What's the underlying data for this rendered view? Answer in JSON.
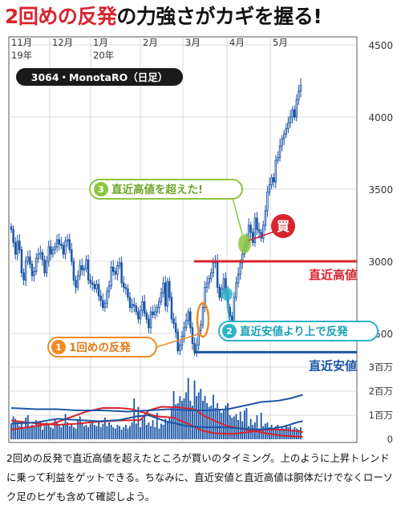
{
  "headline": {
    "part1": "2回めの反発",
    "part2": "の力強さがカギを握る!"
  },
  "ticker_label": "3064・MonotaRO（日足）",
  "caption": "2回めの反発で直近高値を超えたところが買いのタイミング。上のように上昇トレンドに乗って利益をゲットできる。ちなみに、直近安値と直近高値は胴体だけでなくローソク足のヒゲも含めて確認しよう。",
  "colors": {
    "headline_red": "#d8242e",
    "candle": "#1d56a6",
    "volume": "#1d56a6",
    "high_line": "#d8242e",
    "low_line": "#1d56a6",
    "orange": "#f08a24",
    "green": "#8cc63f",
    "cyan": "#2fb3c9"
  },
  "chart_data": {
    "type": "candlestick",
    "x_tick_labels": [
      {
        "month": "11月",
        "year": "19年"
      },
      {
        "month": "12月",
        "year": ""
      },
      {
        "month": "1月",
        "year": "20年"
      },
      {
        "month": "2月",
        "year": ""
      },
      {
        "month": "3月",
        "year": ""
      },
      {
        "month": "4月",
        "year": ""
      },
      {
        "month": "5月",
        "year": ""
      }
    ],
    "price_axis": {
      "min": 2200,
      "max": 4500,
      "ticks": [
        "4500",
        "4000",
        "3500",
        "3000",
        "2500"
      ]
    },
    "volume_axis": {
      "max": 3,
      "ticks": [
        "3百万",
        "2百万",
        "1百万",
        "0"
      ]
    },
    "closes": [
      3220,
      3130,
      3050,
      3140,
      3080,
      2920,
      2870,
      3000,
      3030,
      2980,
      2900,
      2930,
      3020,
      3050,
      3060,
      3010,
      2920,
      3000,
      3100,
      3050,
      3080,
      3100,
      3150,
      3120,
      3110,
      3050,
      3140,
      3150,
      3080,
      3000,
      2870,
      2820,
      2900,
      2970,
      2940,
      2950,
      3010,
      2870,
      2850,
      2840,
      2810,
      2840,
      2760,
      2730,
      2680,
      2710,
      2790,
      2830,
      2960,
      2930,
      2910,
      2970,
      2990,
      2850,
      2820,
      2810,
      2750,
      2680,
      2700,
      2690,
      2650,
      2600,
      2660,
      2720,
      2640,
      2600,
      2540,
      2650,
      2630,
      2650,
      2680,
      2720,
      2780,
      2850,
      2690,
      2860,
      2750,
      2600,
      2570,
      2510,
      2380,
      2420,
      2480,
      2540,
      2590,
      2650,
      2540,
      2430,
      2370,
      2420,
      2520,
      2560,
      2680,
      2820,
      2850,
      2880,
      2920,
      2990,
      3000,
      2820,
      2750,
      2810,
      2880,
      2780,
      2680,
      2620,
      2570,
      2750,
      2850,
      2910,
      2990,
      3050,
      3100,
      3150,
      3250,
      3200,
      3130,
      3300,
      3220,
      3200,
      3160,
      3250,
      3350,
      3480,
      3530,
      3580,
      3550,
      3700,
      3720,
      3800,
      3850,
      3880,
      3920,
      3960,
      4000,
      4050,
      4000,
      4120,
      4180,
      4220
    ],
    "volumes": [
      0.65,
      0.95,
      0.85,
      0.75,
      0.55,
      0.7,
      0.45,
      0.9,
      1.0,
      0.55,
      0.6,
      0.5,
      0.8,
      0.65,
      0.75,
      0.4,
      0.55,
      0.7,
      0.6,
      0.5,
      0.45,
      0.85,
      0.75,
      0.6,
      0.5,
      0.65,
      1.05,
      0.7,
      0.55,
      0.6,
      0.5,
      0.45,
      0.8,
      0.95,
      0.7,
      0.55,
      0.6,
      0.5,
      0.65,
      0.7,
      0.6,
      0.55,
      0.75,
      0.5,
      0.65,
      0.9,
      0.55,
      0.7,
      0.6,
      0.5,
      0.45,
      0.6,
      0.55,
      0.4,
      0.5,
      0.6,
      0.45,
      0.55,
      0.7,
      1.7,
      0.65,
      1.35,
      0.5,
      0.85,
      1.0,
      0.6,
      0.7,
      0.55,
      0.8,
      0.5,
      1.1,
      0.45,
      0.65,
      0.6,
      0.85,
      0.75,
      0.9,
      1.3,
      2.0,
      1.45,
      1.5,
      1.8,
      1.6,
      1.7,
      1.95,
      2.55,
      1.6,
      1.4,
      2.45,
      1.8,
      1.95,
      2.1,
      1.6,
      1.8,
      1.5,
      1.35,
      1.4,
      1.85,
      1.3,
      1.5,
      1.25,
      1.1,
      1.2,
      1.4,
      1.5,
      1.0,
      0.9,
      0.95,
      1.05,
      0.8,
      1.15,
      0.75,
      1.2,
      1.3,
      0.55,
      0.85,
      0.6,
      0.7,
      1.0,
      0.45,
      1.1,
      0.55,
      0.65,
      0.7,
      0.5,
      0.6,
      0.45,
      0.55,
      0.6,
      0.4,
      0.5,
      0.45,
      0.6,
      0.5,
      0.55,
      0.4,
      0.5,
      0.45,
      0.4,
      0.5
    ],
    "volume_ma": [
      {
        "color": "#d8242e",
        "values": [
          [
            0,
            0.78
          ],
          [
            12,
            0.66
          ],
          [
            22,
            0.6
          ],
          [
            32,
            0.65
          ],
          [
            40,
            0.72
          ],
          [
            52,
            0.78
          ],
          [
            62,
            0.8
          ],
          [
            66,
            1.2
          ],
          [
            72,
            1.35
          ],
          [
            80,
            1.33
          ],
          [
            88,
            1.25
          ],
          [
            92,
            1.0
          ],
          [
            98,
            0.75
          ],
          [
            104,
            0.55
          ],
          [
            110,
            0.45
          ],
          [
            116,
            0.35
          ],
          [
            122,
            0.25
          ],
          [
            130,
            0.15
          ],
          [
            136,
            0.12
          ],
          [
            140,
            0.1
          ]
        ]
      },
      {
        "color": "#d8242e",
        "values": [
          [
            0,
            0.4
          ],
          [
            12,
            0.55
          ],
          [
            20,
            0.65
          ],
          [
            28,
            0.9
          ],
          [
            36,
            1.15
          ],
          [
            44,
            1.3
          ],
          [
            52,
            1.3
          ],
          [
            58,
            1.25
          ],
          [
            64,
            1.1
          ],
          [
            70,
            0.95
          ],
          [
            78,
            0.9
          ],
          [
            86,
            0.6
          ],
          [
            92,
            0.35
          ],
          [
            98,
            0.25
          ],
          [
            106,
            0.22
          ],
          [
            114,
            0.3
          ],
          [
            122,
            0.4
          ],
          [
            130,
            0.4
          ],
          [
            136,
            0.35
          ],
          [
            140,
            0.3
          ]
        ]
      },
      {
        "color": "#1d56a6",
        "values": [
          [
            0,
            0.65
          ],
          [
            12,
            0.7
          ],
          [
            22,
            0.85
          ],
          [
            32,
            0.8
          ],
          [
            42,
            0.75
          ],
          [
            52,
            0.8
          ],
          [
            60,
            0.95
          ],
          [
            66,
            1.0
          ],
          [
            74,
            0.75
          ],
          [
            84,
            0.55
          ],
          [
            92,
            0.5
          ],
          [
            102,
            0.5
          ],
          [
            110,
            0.45
          ],
          [
            118,
            0.4
          ],
          [
            126,
            0.45
          ],
          [
            132,
            0.55
          ],
          [
            137,
            0.7
          ],
          [
            140,
            0.75
          ]
        ]
      },
      {
        "color": "#1d56a6",
        "values": [
          [
            0,
            1.3
          ],
          [
            12,
            1.25
          ],
          [
            22,
            1.25
          ],
          [
            32,
            1.2
          ],
          [
            44,
            1.2
          ],
          [
            56,
            1.15
          ],
          [
            66,
            1.2
          ],
          [
            76,
            1.25
          ],
          [
            86,
            1.2
          ],
          [
            94,
            1.2
          ],
          [
            104,
            1.25
          ],
          [
            112,
            1.4
          ],
          [
            120,
            1.55
          ],
          [
            128,
            1.6
          ],
          [
            134,
            1.7
          ],
          [
            140,
            1.85
          ]
        ]
      }
    ],
    "reference_lines": [
      {
        "label": "直近高値",
        "value": 3000,
        "color": "#d8242e"
      },
      {
        "label": "直近安値",
        "value": 2370,
        "color": "#1d56a6"
      }
    ],
    "annotations": [
      {
        "label": "1回めの反発",
        "number": "1",
        "color": "#f08a24"
      },
      {
        "label": "直近安値より上で反発",
        "number": "2",
        "color": "#2fb3c9"
      },
      {
        "label": "直近高値を超えた!",
        "number": "3",
        "color": "#8cc63f"
      },
      {
        "label": "買",
        "color": "#d8242e"
      }
    ]
  }
}
